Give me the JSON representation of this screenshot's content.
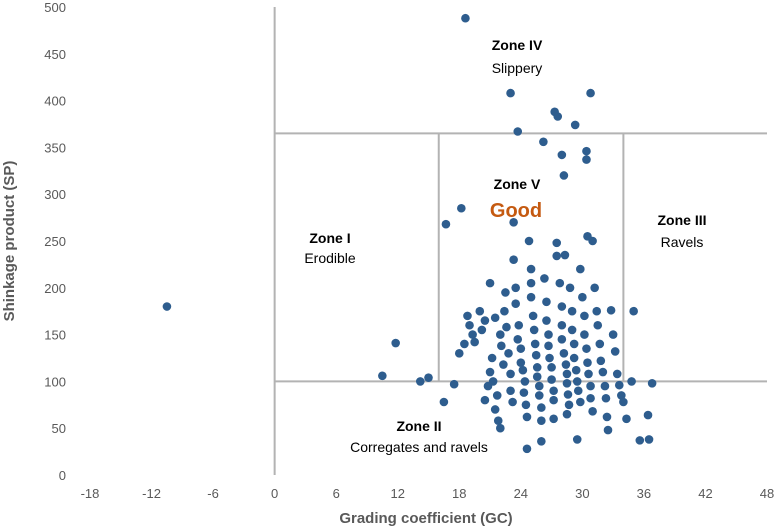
{
  "chart_data": {
    "type": "scatter",
    "xlabel": "Grading coefficient (GC)",
    "ylabel": "Shinkage product (SP)",
    "xlim": [
      -18,
      48
    ],
    "ylim": [
      0,
      500
    ],
    "x_ticks": [
      "-18",
      "-12",
      "-6",
      "0",
      "6",
      "12",
      "18",
      "24",
      "30",
      "36",
      "42",
      "48"
    ],
    "y_ticks": [
      "0",
      "50",
      "100",
      "150",
      "200",
      "250",
      "300",
      "350",
      "400",
      "450",
      "500"
    ],
    "grid": false,
    "colors": {
      "marker": "#2e5d8e",
      "zone_line": "#b3b3b3",
      "good": "#c55a11",
      "text": "#595959"
    },
    "zone_boundaries": {
      "gc_start": 0,
      "gc_mid_left": 16,
      "gc_mid_right": 34,
      "sp_low": 100,
      "sp_high": 365
    },
    "zones": [
      {
        "title": "Zone I",
        "subtitle": "Erodible"
      },
      {
        "title": "Zone II",
        "subtitle": "Corregates and ravels"
      },
      {
        "title": "Zone III",
        "subtitle": "Ravels"
      },
      {
        "title": "Zone IV",
        "subtitle": "Slippery"
      },
      {
        "title": "Zone V",
        "subtitle": "Good"
      }
    ],
    "points": [
      [
        -10.5,
        180
      ],
      [
        10.5,
        106
      ],
      [
        11.8,
        141
      ],
      [
        14.2,
        100
      ],
      [
        15,
        104
      ],
      [
        16.5,
        78
      ],
      [
        16.7,
        268
      ],
      [
        17.5,
        97
      ],
      [
        18,
        130
      ],
      [
        18.2,
        285
      ],
      [
        18.6,
        488
      ],
      [
        18.5,
        140
      ],
      [
        18.8,
        170
      ],
      [
        19,
        160
      ],
      [
        19.3,
        150
      ],
      [
        19.5,
        142
      ],
      [
        20,
        175
      ],
      [
        20.2,
        155
      ],
      [
        20.5,
        165
      ],
      [
        20.8,
        95
      ],
      [
        20.5,
        80
      ],
      [
        21,
        205
      ],
      [
        21,
        110
      ],
      [
        21.2,
        125
      ],
      [
        21.5,
        168
      ],
      [
        21.3,
        100
      ],
      [
        21.7,
        85
      ],
      [
        21.5,
        70
      ],
      [
        21.8,
        58
      ],
      [
        22,
        50
      ],
      [
        22,
        150
      ],
      [
        22.1,
        138
      ],
      [
        22.3,
        118
      ],
      [
        22.5,
        195
      ],
      [
        22.4,
        175
      ],
      [
        22.6,
        158
      ],
      [
        22.8,
        130
      ],
      [
        23,
        108
      ],
      [
        23,
        90
      ],
      [
        23.2,
        78
      ],
      [
        23.3,
        270
      ],
      [
        23.3,
        230
      ],
      [
        23,
        408
      ],
      [
        23.7,
        367
      ],
      [
        23.5,
        200
      ],
      [
        23.5,
        183
      ],
      [
        23.8,
        160
      ],
      [
        23.7,
        145
      ],
      [
        24,
        135
      ],
      [
        24,
        120
      ],
      [
        24.2,
        112
      ],
      [
        24.4,
        100
      ],
      [
        24.3,
        88
      ],
      [
        24.5,
        75
      ],
      [
        24.6,
        62
      ],
      [
        24.6,
        28
      ],
      [
        24.8,
        250
      ],
      [
        25,
        220
      ],
      [
        25,
        205
      ],
      [
        25,
        190
      ],
      [
        25.2,
        170
      ],
      [
        25.3,
        155
      ],
      [
        25.4,
        140
      ],
      [
        25.5,
        128
      ],
      [
        25.6,
        115
      ],
      [
        25.6,
        105
      ],
      [
        25.8,
        95
      ],
      [
        25.8,
        85
      ],
      [
        26,
        72
      ],
      [
        26,
        58
      ],
      [
        26,
        36
      ],
      [
        26.2,
        356
      ],
      [
        26.3,
        210
      ],
      [
        26.5,
        185
      ],
      [
        26.5,
        165
      ],
      [
        26.7,
        150
      ],
      [
        26.7,
        138
      ],
      [
        26.8,
        125
      ],
      [
        27,
        115
      ],
      [
        27,
        102
      ],
      [
        27.2,
        90
      ],
      [
        27.2,
        80
      ],
      [
        27.2,
        60
      ],
      [
        27.3,
        388
      ],
      [
        27.6,
        383
      ],
      [
        27.5,
        248
      ],
      [
        27.5,
        234
      ],
      [
        27.8,
        205
      ],
      [
        28,
        180
      ],
      [
        28,
        160
      ],
      [
        28,
        145
      ],
      [
        28.2,
        130
      ],
      [
        28.4,
        118
      ],
      [
        28.5,
        108
      ],
      [
        28.5,
        98
      ],
      [
        28.6,
        86
      ],
      [
        28.7,
        75
      ],
      [
        28.5,
        65
      ],
      [
        28,
        342
      ],
      [
        28.2,
        320
      ],
      [
        28.3,
        235
      ],
      [
        28.8,
        200
      ],
      [
        29,
        175
      ],
      [
        29,
        155
      ],
      [
        29.2,
        140
      ],
      [
        29.2,
        125
      ],
      [
        29.4,
        112
      ],
      [
        29.5,
        100
      ],
      [
        29.6,
        90
      ],
      [
        29.8,
        78
      ],
      [
        29.5,
        38
      ],
      [
        29.3,
        374
      ],
      [
        29.8,
        220
      ],
      [
        30,
        190
      ],
      [
        30.2,
        170
      ],
      [
        30.2,
        150
      ],
      [
        30.4,
        135
      ],
      [
        30.5,
        120
      ],
      [
        30.6,
        108
      ],
      [
        30.8,
        95
      ],
      [
        30.8,
        82
      ],
      [
        31,
        68
      ],
      [
        30.4,
        346
      ],
      [
        30.4,
        337
      ],
      [
        30.5,
        255
      ],
      [
        31,
        250
      ],
      [
        30.8,
        408
      ],
      [
        31.2,
        200
      ],
      [
        31.4,
        175
      ],
      [
        31.5,
        160
      ],
      [
        31.7,
        140
      ],
      [
        31.8,
        122
      ],
      [
        32,
        110
      ],
      [
        32.2,
        95
      ],
      [
        32.3,
        82
      ],
      [
        32.4,
        62
      ],
      [
        32.5,
        48
      ],
      [
        32.8,
        176
      ],
      [
        33,
        150
      ],
      [
        33.2,
        132
      ],
      [
        33.4,
        108
      ],
      [
        33.6,
        96
      ],
      [
        33.8,
        85
      ],
      [
        34,
        78
      ],
      [
        34.3,
        60
      ],
      [
        34.8,
        100
      ],
      [
        35,
        175
      ],
      [
        35.6,
        37
      ],
      [
        36.4,
        64
      ],
      [
        36.5,
        38
      ],
      [
        36.8,
        98
      ]
    ]
  }
}
